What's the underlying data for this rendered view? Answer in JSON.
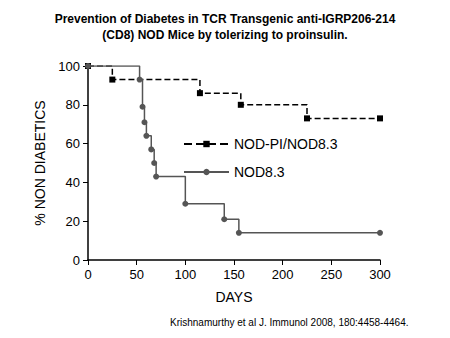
{
  "chart_data": {
    "type": "step",
    "title": "Prevention of Diabetes in TCR Transgenic anti-IGRP206-214\n(CD8) NOD Mice by tolerizing to proinsulin.",
    "annotation": "Krishnamurthy et al J. Immunol 2008, 180:4458-4464.",
    "x_label": "DAYS",
    "y_label": "% NON DIABETICS",
    "xlim": [
      0,
      300
    ],
    "xticks": [
      0,
      50,
      100,
      150,
      200,
      250,
      300
    ],
    "ylim": [
      0,
      100
    ],
    "yticks": [
      0,
      20,
      40,
      60,
      80,
      100
    ],
    "grid": false,
    "legend": "right",
    "series": [
      {
        "name": "NOD-PI/NOD8.3",
        "color": "#000000",
        "marker": "square",
        "line_style": "dashed",
        "x": [
          0,
          25,
          115,
          157,
          225,
          300
        ],
        "values": [
          100,
          93,
          86,
          80,
          73,
          73
        ]
      },
      {
        "name": "NOD8.3",
        "color": "#555555",
        "marker": "circle",
        "line_style": "solid",
        "x": [
          0,
          53,
          56,
          58,
          60,
          65,
          68,
          70,
          100,
          140,
          155,
          300
        ],
        "values": [
          100,
          93,
          79,
          71,
          64,
          57,
          50,
          43,
          29,
          21,
          14,
          14
        ]
      }
    ]
  }
}
